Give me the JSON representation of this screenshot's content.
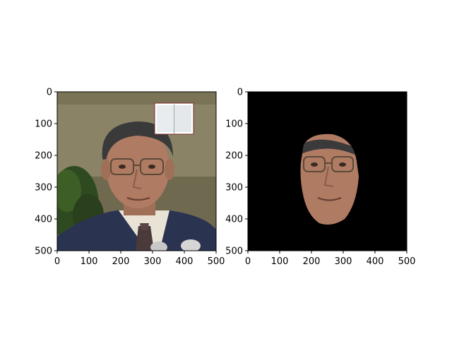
{
  "figure": {
    "panels": [
      {
        "id": "left",
        "description": "photograph of a man with glasses in a suit and tie; a small book-like white rectangle overlaid near the top right",
        "x_ticks": [
          "0",
          "100",
          "200",
          "300",
          "400",
          "500"
        ],
        "y_ticks": [
          "0",
          "100",
          "200",
          "300",
          "400",
          "500"
        ]
      },
      {
        "id": "right",
        "description": "segmented face on a black background",
        "x_ticks": [
          "0",
          "100",
          "200",
          "300",
          "400",
          "500"
        ],
        "y_ticks": [
          "0",
          "100",
          "200",
          "300",
          "400",
          "500"
        ]
      }
    ]
  },
  "colors": {
    "left_bg": "#6f6a4f",
    "left_wall": "#8a8366",
    "suit": "#2a3350",
    "shirt": "#e9e3d6",
    "skin": "#b07b63",
    "hair": "#3a3a3a",
    "black": "#000000"
  }
}
